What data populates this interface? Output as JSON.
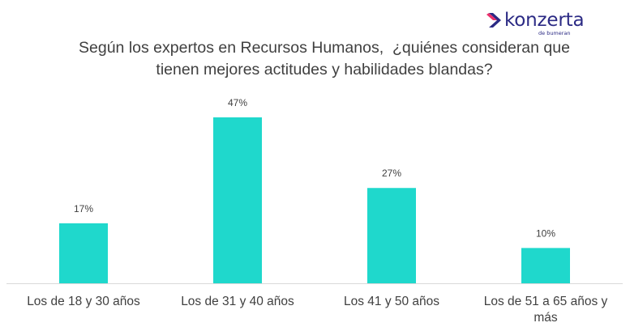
{
  "brand": {
    "name": "konzerta",
    "sub": "de bumeran",
    "color": "#2b2a84",
    "accent": "#e8195c"
  },
  "title_lines": [
    "Según los expertos en Recursos Humanos,  ¿quiénes consideran que",
    "tienen mejores actitudes y habilidades blandas?"
  ],
  "chart_data": {
    "type": "bar",
    "title": "Según los expertos en Recursos Humanos,  ¿quiénes consideran que tienen mejores actitudes y habilidades blandas?",
    "categories": [
      [
        "Los de 18 y 30 años"
      ],
      [
        "Los de 31 y 40 años"
      ],
      [
        "Los 41 y 50 años"
      ],
      [
        "Los de 51 a 65 años y",
        "más"
      ]
    ],
    "values": [
      17,
      47,
      27,
      10
    ],
    "data_labels": [
      "17%",
      "47%",
      "27%",
      "10%"
    ],
    "unit": "%",
    "ylim": [
      0,
      50
    ],
    "bar_color": "#1fd8cc",
    "axis_color": "#d9d9d9",
    "grid": false,
    "legend": "none"
  }
}
